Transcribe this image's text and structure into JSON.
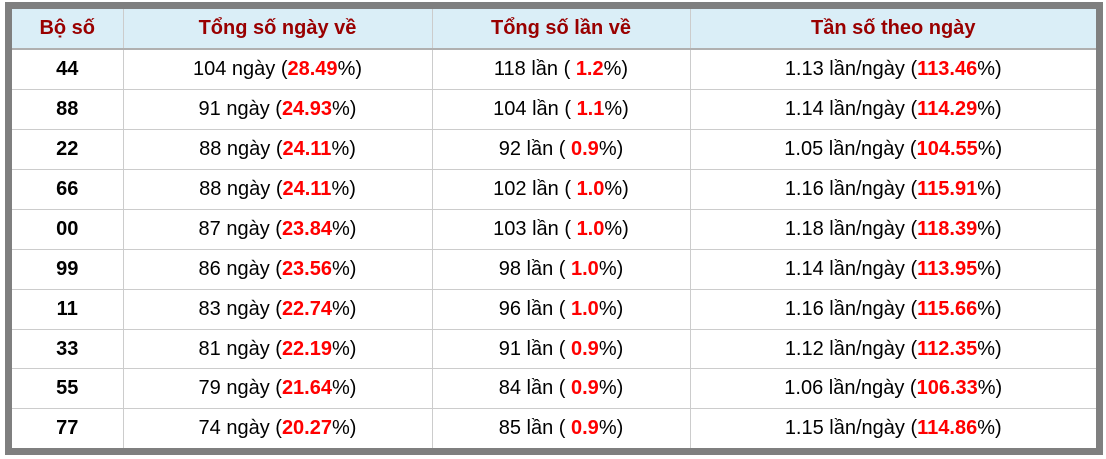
{
  "colors": {
    "header_bg": "#daeef7",
    "header_text": "#990000",
    "highlight_red": "#ff0000",
    "body_text": "#000000",
    "outer_border": "#7f7f7f",
    "grid_line": "#cccccc",
    "header_underline": "#b0b0b0",
    "page_bg": "#ffffff"
  },
  "table": {
    "headers": [
      "Bộ số",
      "Tổng số ngày về",
      "Tổng số lần về",
      "Tần số theo ngày"
    ],
    "rows": [
      {
        "pair": "44",
        "days_pre": "104 ngày (",
        "days_red": "28.49",
        "days_post": "%)",
        "times_pre": "118 lần ( ",
        "times_red": "1.2",
        "times_post": "%)",
        "freq_pre": "1.13 lần/ngày (",
        "freq_red": "113.46",
        "freq_post": "%)"
      },
      {
        "pair": "88",
        "days_pre": "91 ngày (",
        "days_red": "24.93",
        "days_post": "%)",
        "times_pre": "104 lần ( ",
        "times_red": "1.1",
        "times_post": "%)",
        "freq_pre": "1.14 lần/ngày (",
        "freq_red": "114.29",
        "freq_post": "%)"
      },
      {
        "pair": "22",
        "days_pre": "88 ngày (",
        "days_red": "24.11",
        "days_post": "%)",
        "times_pre": "92 lần ( ",
        "times_red": "0.9",
        "times_post": "%)",
        "freq_pre": "1.05 lần/ngày (",
        "freq_red": "104.55",
        "freq_post": "%)"
      },
      {
        "pair": "66",
        "days_pre": "88 ngày (",
        "days_red": "24.11",
        "days_post": "%)",
        "times_pre": "102 lần ( ",
        "times_red": "1.0",
        "times_post": "%)",
        "freq_pre": "1.16 lần/ngày (",
        "freq_red": "115.91",
        "freq_post": "%)"
      },
      {
        "pair": "00",
        "days_pre": "87 ngày (",
        "days_red": "23.84",
        "days_post": "%)",
        "times_pre": "103 lần ( ",
        "times_red": "1.0",
        "times_post": "%)",
        "freq_pre": "1.18 lần/ngày (",
        "freq_red": "118.39",
        "freq_post": "%)"
      },
      {
        "pair": "99",
        "days_pre": "86 ngày (",
        "days_red": "23.56",
        "days_post": "%)",
        "times_pre": "98 lần ( ",
        "times_red": "1.0",
        "times_post": "%)",
        "freq_pre": "1.14 lần/ngày (",
        "freq_red": "113.95",
        "freq_post": "%)"
      },
      {
        "pair": "11",
        "days_pre": "83 ngày (",
        "days_red": "22.74",
        "days_post": "%)",
        "times_pre": "96 lần ( ",
        "times_red": "1.0",
        "times_post": "%)",
        "freq_pre": "1.16 lần/ngày (",
        "freq_red": "115.66",
        "freq_post": "%)"
      },
      {
        "pair": "33",
        "days_pre": "81 ngày (",
        "days_red": "22.19",
        "days_post": "%)",
        "times_pre": "91 lần ( ",
        "times_red": "0.9",
        "times_post": "%)",
        "freq_pre": "1.12 lần/ngày (",
        "freq_red": "112.35",
        "freq_post": "%)"
      },
      {
        "pair": "55",
        "days_pre": "79 ngày (",
        "days_red": "21.64",
        "days_post": "%)",
        "times_pre": "84 lần ( ",
        "times_red": "0.9",
        "times_post": "%)",
        "freq_pre": "1.06 lần/ngày (",
        "freq_red": "106.33",
        "freq_post": "%)"
      },
      {
        "pair": "77",
        "days_pre": "74 ngày (",
        "days_red": "20.27",
        "days_post": "%)",
        "times_pre": "85 lần ( ",
        "times_red": "0.9",
        "times_post": "%)",
        "freq_pre": "1.15 lần/ngày (",
        "freq_red": "114.86",
        "freq_post": "%)"
      }
    ]
  }
}
